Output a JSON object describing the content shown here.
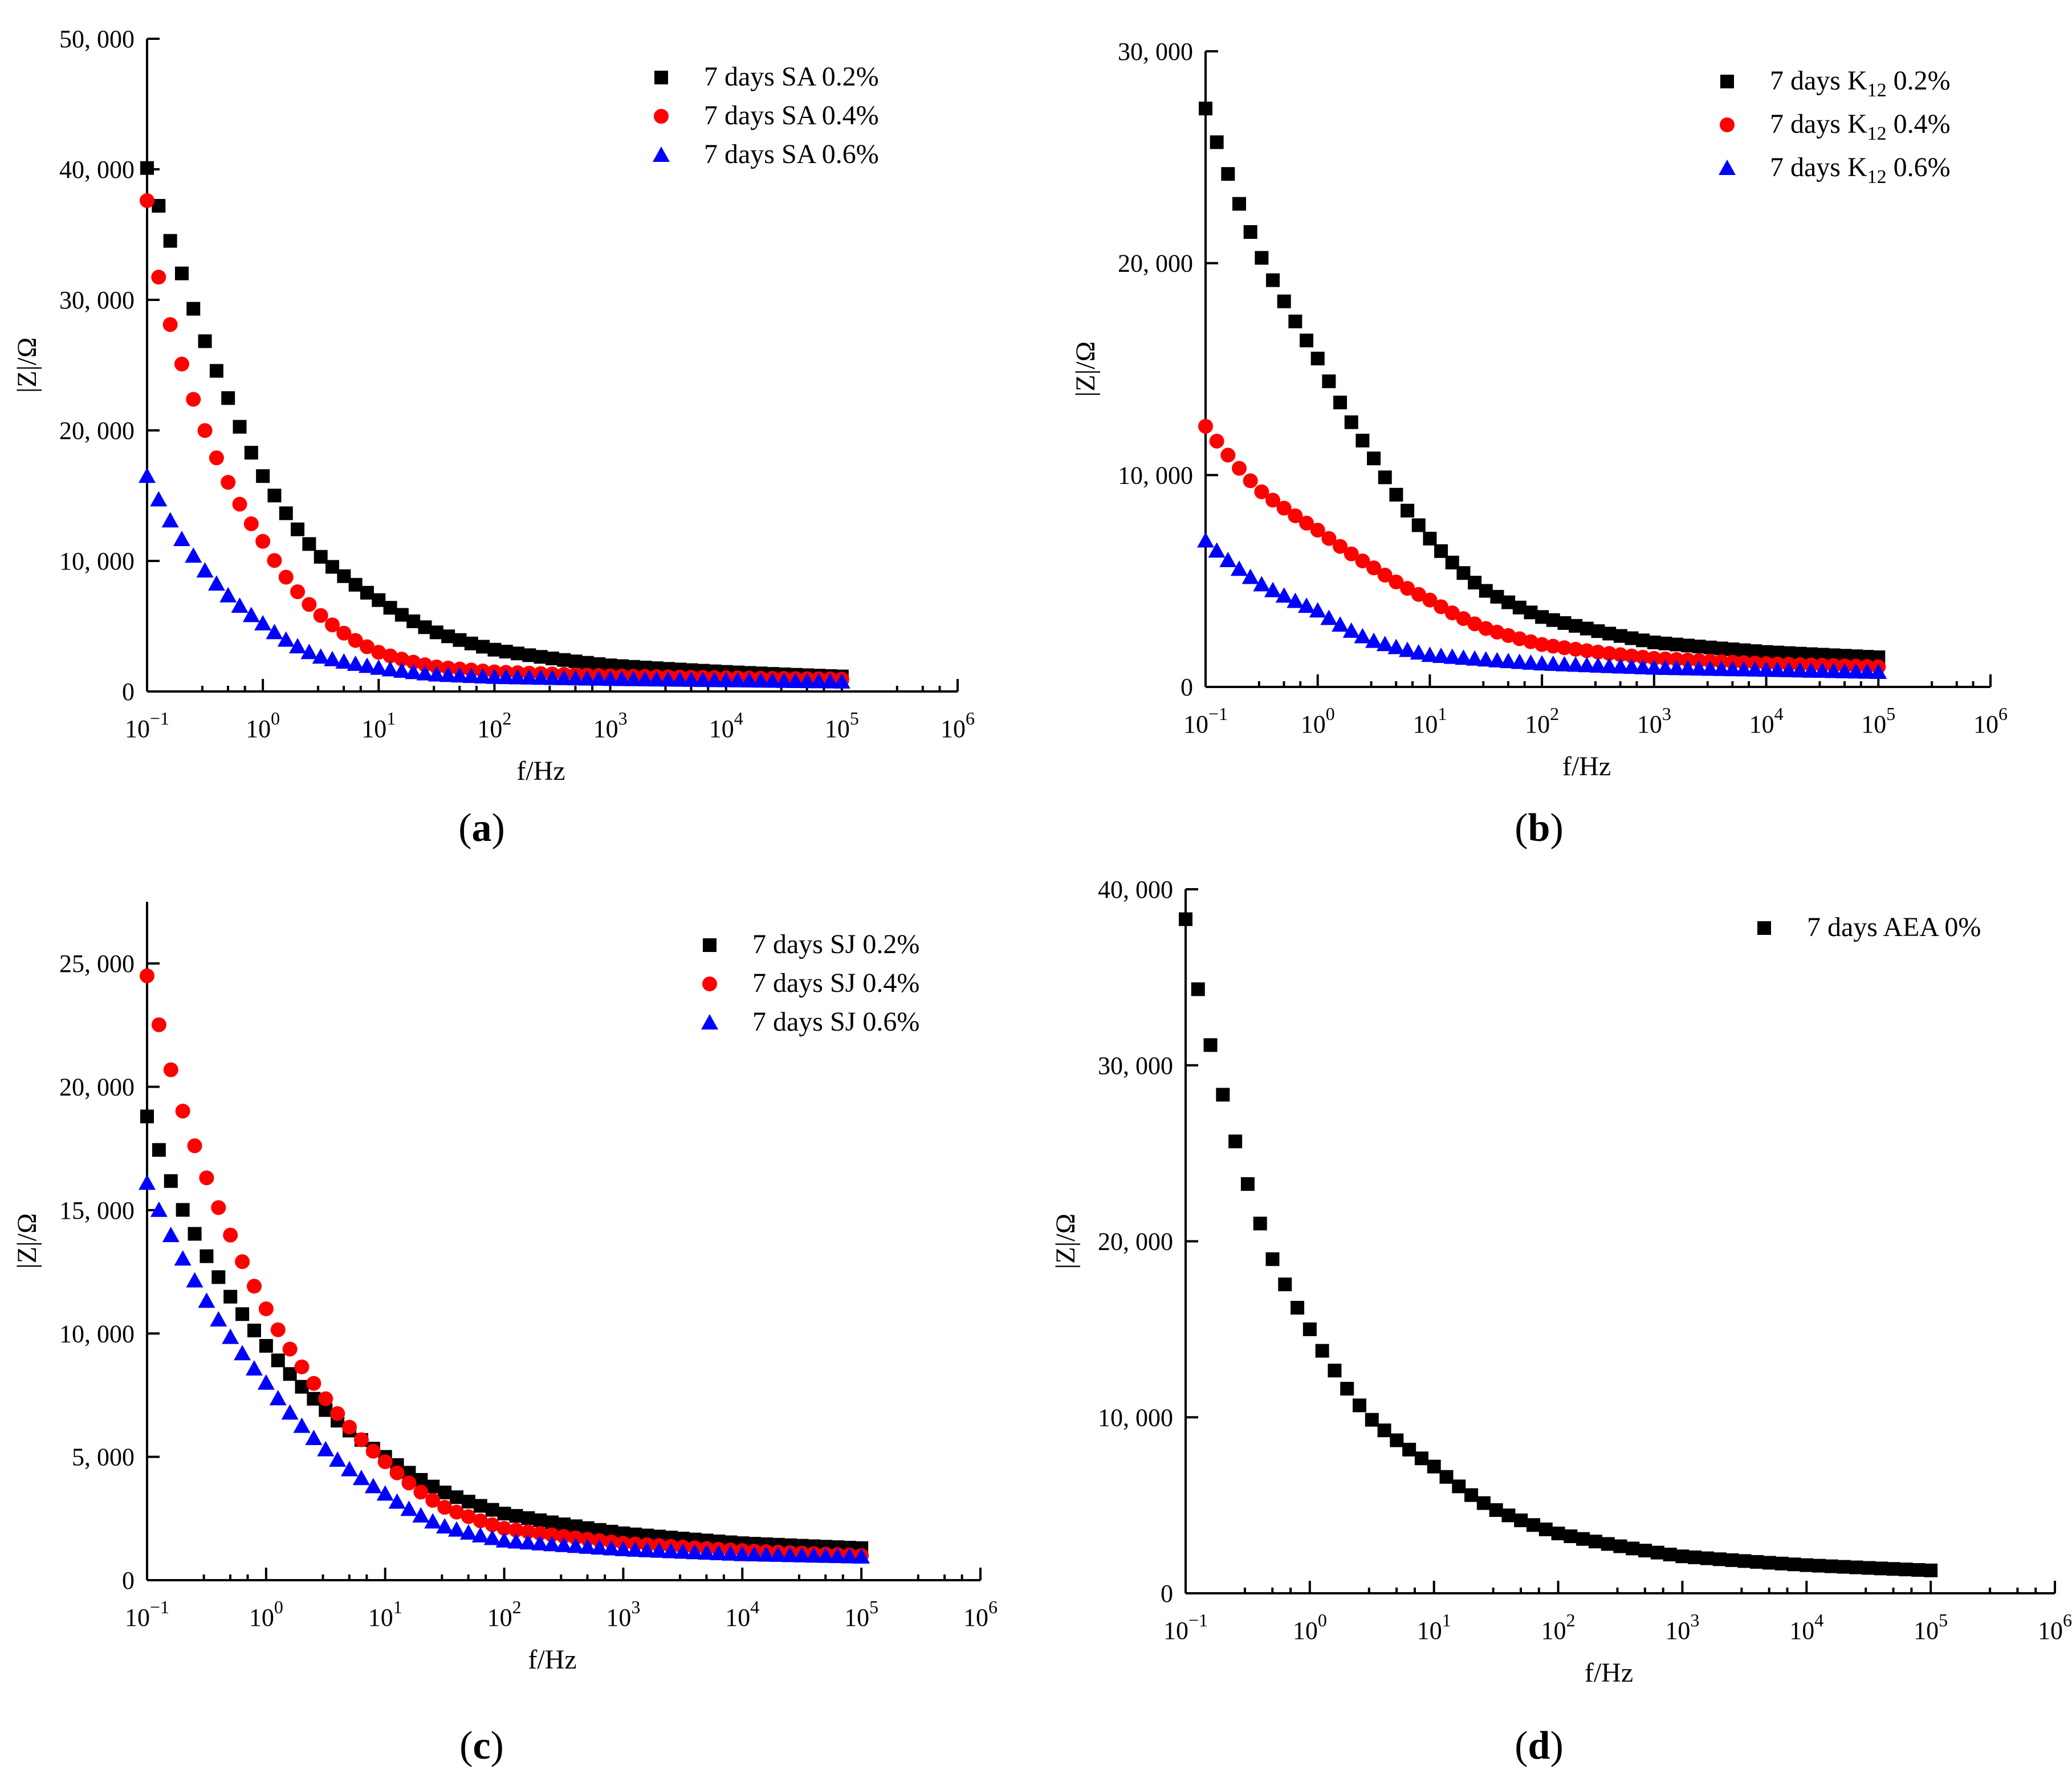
{
  "chart_data": [
    {
      "panel": "a",
      "type": "scatter",
      "xscale": "log",
      "xlabel": "f/Hz",
      "ylabel": "|Z|/Ω",
      "xlim": [
        0.1,
        1000000
      ],
      "ylim": [
        0,
        50000
      ],
      "yticks": [
        0,
        10000,
        20000,
        30000,
        40000,
        50000
      ],
      "ytick_labels": [
        "0",
        "10, 000",
        "20, 000",
        "30, 000",
        "40, 000",
        "50, 000"
      ],
      "xtick_labels": [
        {
          "base": "10",
          "exp": "−1"
        },
        {
          "base": "10",
          "exp": "0"
        },
        {
          "base": "10",
          "exp": "1"
        },
        {
          "base": "10",
          "exp": "2"
        },
        {
          "base": "10",
          "exp": "3"
        },
        {
          "base": "10",
          "exp": "4"
        },
        {
          "base": "10",
          "exp": "5"
        },
        {
          "base": "10",
          "exp": "6"
        }
      ],
      "legend_position": "top-right",
      "caption": {
        "open": "(",
        "letter": "a",
        "close": ")"
      },
      "series": [
        {
          "name": "7 days SA 0.2%",
          "marker": "square",
          "color": "#000000",
          "anchors": [
            [
              0.1,
              40100
            ],
            [
              0.2,
              32000
            ],
            [
              0.5,
              22500
            ],
            [
              1,
              16500
            ],
            [
              3,
              10500
            ],
            [
              10,
              7000
            ],
            [
              30,
              4600
            ],
            [
              100,
              3200
            ],
            [
              1000,
              2000
            ],
            [
              10000,
              1500
            ],
            [
              100000,
              1150
            ]
          ]
        },
        {
          "name": "7 days SA 0.4%",
          "marker": "circle",
          "color": "#ff0000",
          "anchors": [
            [
              0.1,
              37600
            ],
            [
              0.13,
              31000
            ],
            [
              0.3,
              20500
            ],
            [
              1,
              11500
            ],
            [
              3,
              6000
            ],
            [
              10,
              3000
            ],
            [
              30,
              1900
            ],
            [
              100,
              1500
            ],
            [
              1000,
              1200
            ],
            [
              10000,
              1050
            ],
            [
              100000,
              950
            ]
          ]
        },
        {
          "name": "7 days SA 0.6%",
          "marker": "triangle",
          "color": "#0000ff",
          "anchors": [
            [
              0.1,
              16500
            ],
            [
              0.3,
              9500
            ],
            [
              1,
              5200
            ],
            [
              3,
              2700
            ],
            [
              10,
              1800
            ],
            [
              30,
              1300
            ],
            [
              100,
              1100
            ],
            [
              1000,
              950
            ],
            [
              10000,
              850
            ],
            [
              100000,
              750
            ]
          ]
        }
      ]
    },
    {
      "panel": "b",
      "type": "scatter",
      "xscale": "log",
      "xlabel": "f/Hz",
      "ylabel": "|Z|/Ω",
      "xlim": [
        0.1,
        1000000
      ],
      "ylim": [
        0,
        30000
      ],
      "yticks": [
        0,
        10000,
        20000,
        30000
      ],
      "ytick_labels": [
        "0",
        "10, 000",
        "20, 000",
        "30, 000"
      ],
      "xtick_labels": [
        {
          "base": "10",
          "exp": "−1"
        },
        {
          "base": "10",
          "exp": "0"
        },
        {
          "base": "10",
          "exp": "1"
        },
        {
          "base": "10",
          "exp": "2"
        },
        {
          "base": "10",
          "exp": "3"
        },
        {
          "base": "10",
          "exp": "4"
        },
        {
          "base": "10",
          "exp": "5"
        },
        {
          "base": "10",
          "exp": "6"
        }
      ],
      "legend_position": "top-right",
      "caption": {
        "open": "(",
        "letter": "b",
        "close": ")"
      },
      "series": [
        {
          "name": "7 days K12 0.2%",
          "legend": {
            "pre": "7 days K",
            "sub": "12",
            "post": " 0.2%"
          },
          "marker": "square",
          "color": "#000000",
          "anchors": [
            [
              0.1,
              27300
            ],
            [
              0.3,
              20500
            ],
            [
              1,
              15500
            ],
            [
              3,
              11000
            ],
            [
              10,
              7000
            ],
            [
              30,
              4600
            ],
            [
              100,
              3300
            ],
            [
              1000,
              2100
            ],
            [
              10000,
              1650
            ],
            [
              100000,
              1400
            ]
          ]
        },
        {
          "name": "7 days K12 0.4%",
          "legend": {
            "pre": "7 days K",
            "sub": "12",
            "post": " 0.4%"
          },
          "marker": "circle",
          "color": "#ff0000",
          "anchors": [
            [
              0.1,
              12300
            ],
            [
              0.3,
              9300
            ],
            [
              1,
              7400
            ],
            [
              3,
              5700
            ],
            [
              10,
              4100
            ],
            [
              30,
              2800
            ],
            [
              100,
              2000
            ],
            [
              1000,
              1350
            ],
            [
              10000,
              1100
            ],
            [
              100000,
              950
            ]
          ]
        },
        {
          "name": "7 days K12 0.6%",
          "legend": {
            "pre": "7 days K",
            "sub": "12",
            "post": " 0.6%"
          },
          "marker": "triangle",
          "color": "#0000ff",
          "anchors": [
            [
              0.1,
              6900
            ],
            [
              0.3,
              4900
            ],
            [
              1,
              3600
            ],
            [
              3,
              2200
            ],
            [
              10,
              1500
            ],
            [
              100,
              1100
            ],
            [
              1000,
              900
            ],
            [
              10000,
              800
            ],
            [
              100000,
              700
            ]
          ]
        }
      ]
    },
    {
      "panel": "c",
      "type": "scatter",
      "xscale": "log",
      "xlabel": "f/Hz",
      "ylabel": "|Z|/Ω",
      "xlim": [
        0.1,
        1000000
      ],
      "ylim": [
        0,
        27500
      ],
      "yticks": [
        0,
        5000,
        10000,
        15000,
        20000,
        25000
      ],
      "ytick_labels": [
        "0",
        "5, 000",
        "10, 000",
        "15, 000",
        "20, 000",
        "25, 000"
      ],
      "xtick_labels": [
        {
          "base": "10",
          "exp": "−1"
        },
        {
          "base": "10",
          "exp": "0"
        },
        {
          "base": "10",
          "exp": "1"
        },
        {
          "base": "10",
          "exp": "2"
        },
        {
          "base": "10",
          "exp": "3"
        },
        {
          "base": "10",
          "exp": "4"
        },
        {
          "base": "10",
          "exp": "5"
        },
        {
          "base": "10",
          "exp": "6"
        }
      ],
      "legend_position": "top-right",
      "caption": {
        "open": "(",
        "letter": "c",
        "close": ")"
      },
      "series": [
        {
          "name": "7 days SJ 0.2%",
          "marker": "square",
          "color": "#000000",
          "anchors": [
            [
              0.1,
              18800
            ],
            [
              0.2,
              15000
            ],
            [
              0.5,
              11500
            ],
            [
              1,
              9500
            ],
            [
              3,
              7000
            ],
            [
              10,
              5000
            ],
            [
              30,
              3600
            ],
            [
              100,
              2700
            ],
            [
              1000,
              1900
            ],
            [
              10000,
              1500
            ],
            [
              100000,
              1300
            ]
          ]
        },
        {
          "name": "7 days SJ 0.4%",
          "marker": "circle",
          "color": "#ff0000",
          "anchors": [
            [
              0.1,
              24500
            ],
            [
              0.2,
              19000
            ],
            [
              0.5,
              14000
            ],
            [
              1,
              11000
            ],
            [
              3,
              7500
            ],
            [
              10,
              4800
            ],
            [
              30,
              3000
            ],
            [
              100,
              2100
            ],
            [
              1000,
              1500
            ],
            [
              10000,
              1200
            ],
            [
              100000,
              1000
            ]
          ]
        },
        {
          "name": "7 days SJ 0.6%",
          "marker": "triangle",
          "color": "#0000ff",
          "anchors": [
            [
              0.1,
              16100
            ],
            [
              0.3,
              11500
            ],
            [
              1,
              8000
            ],
            [
              3,
              5400
            ],
            [
              10,
              3500
            ],
            [
              30,
              2200
            ],
            [
              100,
              1600
            ],
            [
              1000,
              1250
            ],
            [
              10000,
              1050
            ],
            [
              100000,
              950
            ]
          ]
        }
      ]
    },
    {
      "panel": "d",
      "type": "scatter",
      "xscale": "log",
      "xlabel": "f/Hz",
      "ylabel": "|Z|/Ω",
      "xlim": [
        0.1,
        1000000
      ],
      "ylim": [
        0,
        40000
      ],
      "yticks": [
        0,
        10000,
        20000,
        30000,
        40000
      ],
      "ytick_labels": [
        "0",
        "10, 000",
        "20, 000",
        "30, 000",
        "40, 000"
      ],
      "xtick_labels": [
        {
          "base": "10",
          "exp": "−1"
        },
        {
          "base": "10",
          "exp": "0"
        },
        {
          "base": "10",
          "exp": "1"
        },
        {
          "base": "10",
          "exp": "2"
        },
        {
          "base": "10",
          "exp": "3"
        },
        {
          "base": "10",
          "exp": "4"
        },
        {
          "base": "10",
          "exp": "5"
        },
        {
          "base": "10",
          "exp": "6"
        }
      ],
      "legend_position": "top-right",
      "caption": {
        "open": "(",
        "letter": "d",
        "close": ")"
      },
      "series": [
        {
          "name": "7 days AEA 0%",
          "marker": "square",
          "color": "#000000",
          "anchors": [
            [
              0.1,
              38300
            ],
            [
              0.13,
              33800
            ],
            [
              0.2,
              28300
            ],
            [
              0.3,
              23800
            ],
            [
              0.5,
              19000
            ],
            [
              1,
              15000
            ],
            [
              3,
              10000
            ],
            [
              10,
              7200
            ],
            [
              30,
              4800
            ],
            [
              100,
              3400
            ],
            [
              1000,
              2100
            ],
            [
              10000,
              1600
            ],
            [
              100000,
              1300
            ]
          ]
        }
      ]
    }
  ]
}
